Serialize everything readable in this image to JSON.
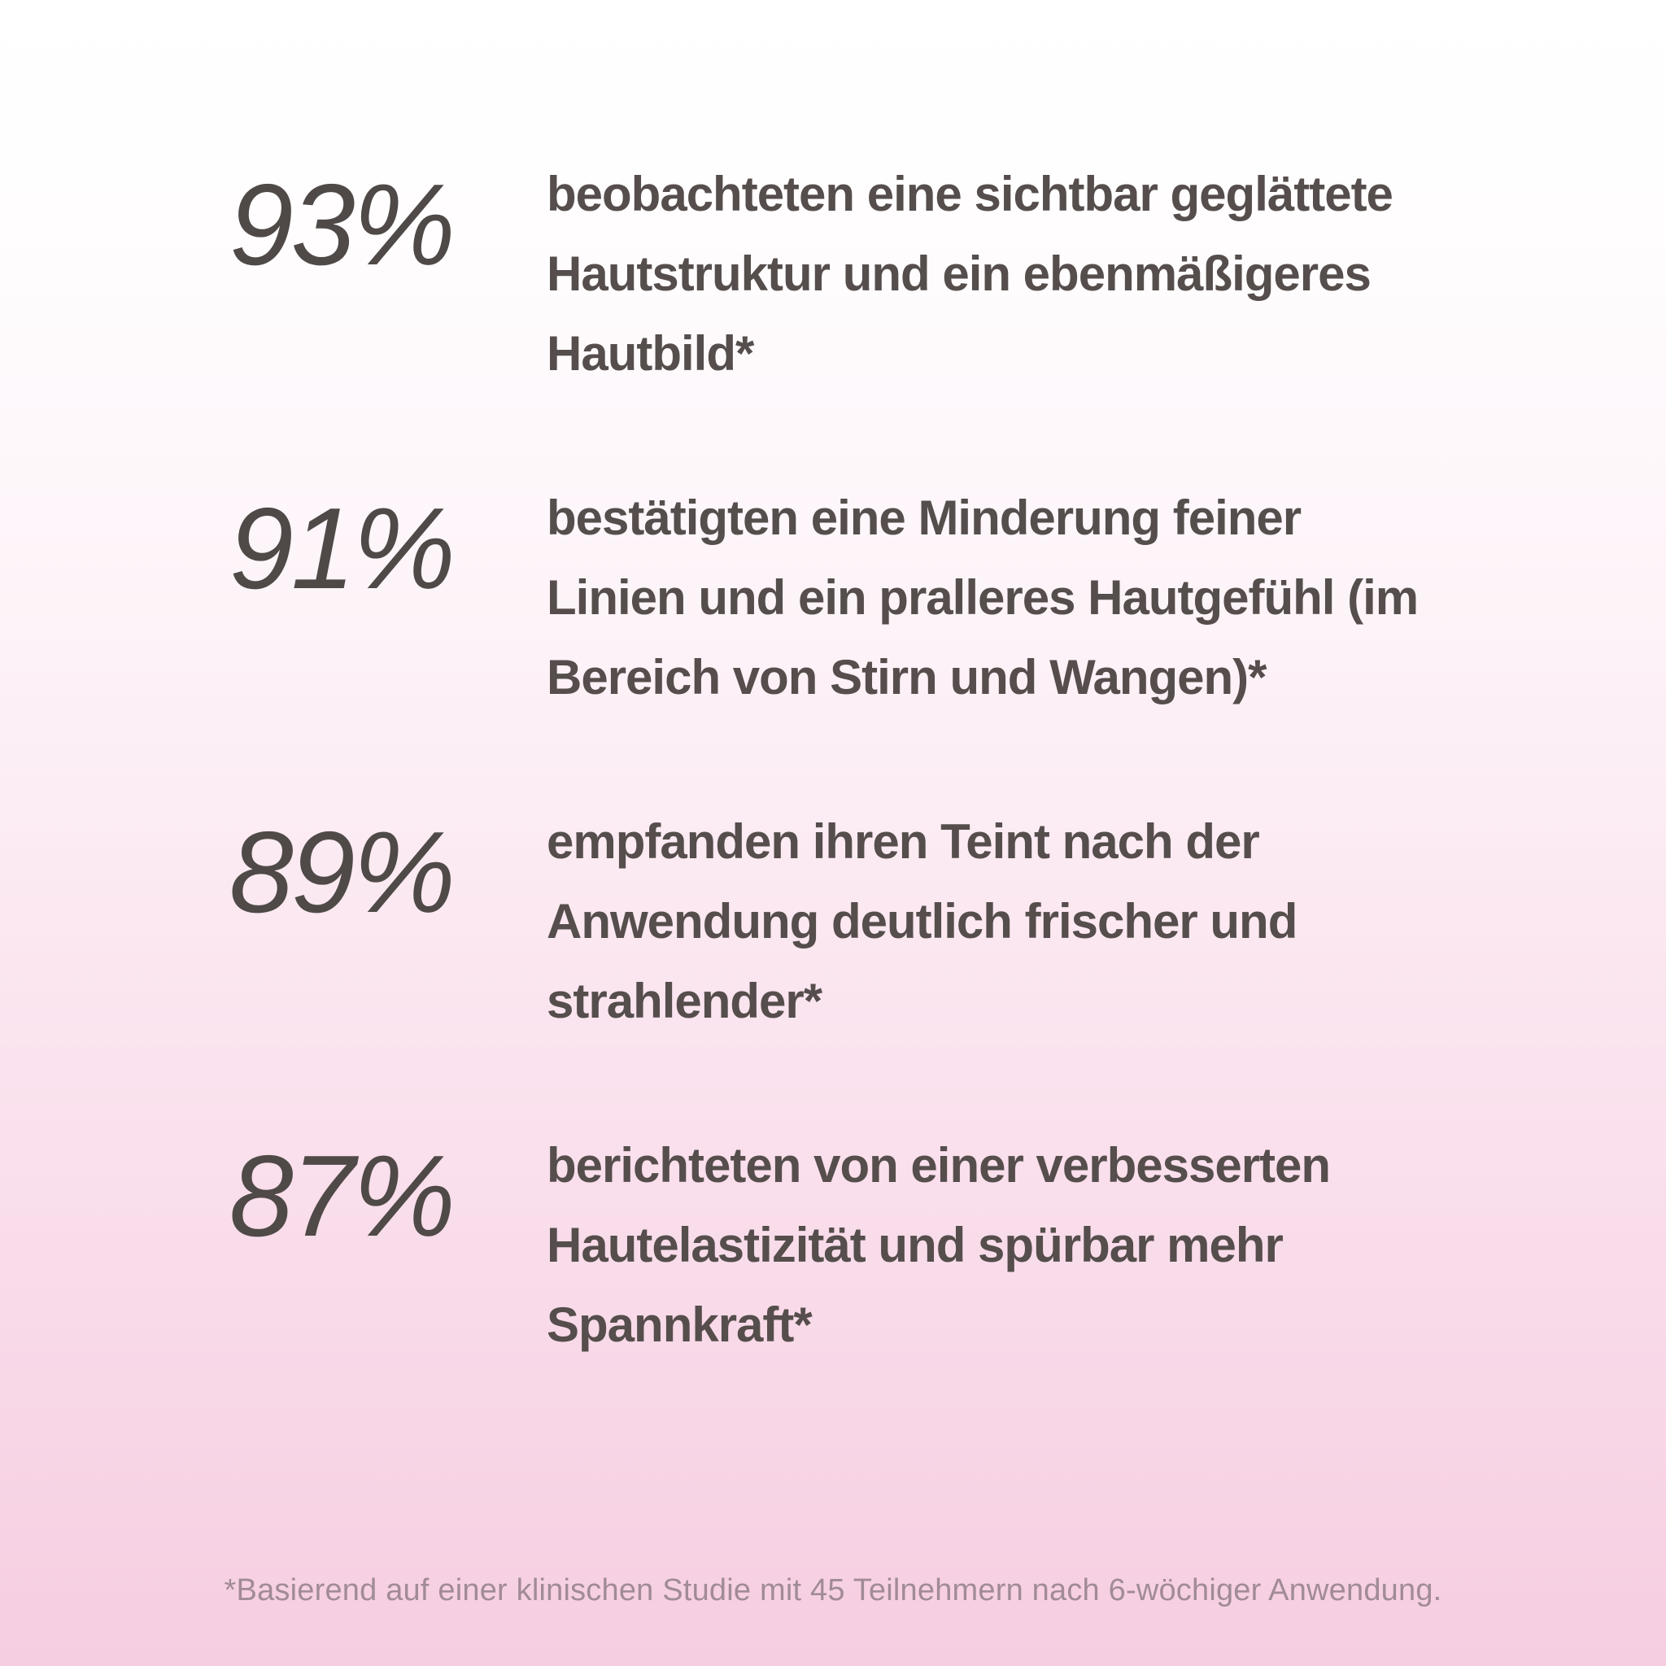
{
  "stats": [
    {
      "value": "93%",
      "description": "beobachteten eine sichtbar geglättete\nHautstruktur und ein ebenmäßigeres\nHautbild*"
    },
    {
      "value": "91%",
      "description": "bestätigten eine Minderung feiner\nLinien und ein pralleres Hautgefühl (im\nBereich von Stirn und Wangen)*"
    },
    {
      "value": "89%",
      "description": "empfanden ihren Teint nach der\nAnwendung deutlich frischer und\nstrahlender*"
    },
    {
      "value": "87%",
      "description": "berichteten von einer verbesserten\nHautelastizität und spürbar mehr\nSpannkraft*"
    }
  ],
  "footnote": "*Basierend auf einer klinischen Studie mit 45 Teilnehmern nach 6-wöchiger Anwendung.",
  "colors": {
    "text": "#554e4c",
    "number": "#4f4a47",
    "footnote": "#a18b97",
    "background_top": "#ffffff",
    "background_bottom": "#f6cce0"
  }
}
